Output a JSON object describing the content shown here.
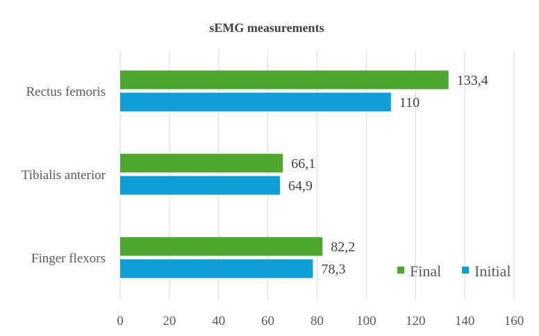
{
  "chart_data": {
    "type": "bar",
    "orientation": "horizontal",
    "title": "sEMG measurements",
    "categories": [
      "Rectus femoris",
      "Tibialis anterior",
      "Finger flexors"
    ],
    "series": [
      {
        "name": "Final",
        "values": [
          133.4,
          66.1,
          82.2
        ],
        "labels": [
          "133,4",
          "66,1",
          "82,2"
        ],
        "color": "#4ea72e"
      },
      {
        "name": "Initial",
        "values": [
          110,
          64.9,
          78.3
        ],
        "labels": [
          "110",
          "64,9",
          "78,3"
        ],
        "color": "#0f9ed5"
      }
    ],
    "xlim": [
      0,
      160
    ],
    "xticks": [
      0,
      20,
      40,
      60,
      80,
      100,
      120,
      140,
      160
    ],
    "grid": true,
    "legend_position": "bottom-right"
  }
}
